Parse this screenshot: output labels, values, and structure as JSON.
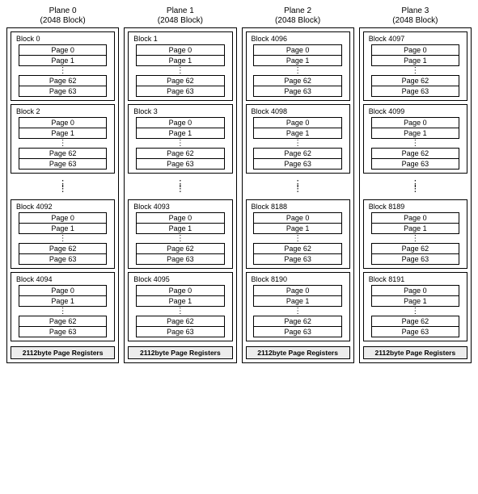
{
  "page_labels": [
    "Page 0",
    "Page 1",
    "Page 62",
    "Page 63"
  ],
  "register_label": "2112byte Page Registers",
  "plane_header": {
    "line1_prefix": "Plane ",
    "line2": "(2048 Block)"
  },
  "planes": [
    {
      "index": 0,
      "blocks_top": [
        "Block 0",
        "Block 2"
      ],
      "blocks_bottom": [
        "Block 4092",
        "Block 4094"
      ]
    },
    {
      "index": 1,
      "blocks_top": [
        "Block 1",
        "Block 3"
      ],
      "blocks_bottom": [
        "Block 4093",
        "Block 4095"
      ]
    },
    {
      "index": 2,
      "blocks_top": [
        "Block 4096",
        "Block 4098"
      ],
      "blocks_bottom": [
        "Block 8188",
        "Block 8190"
      ]
    },
    {
      "index": 3,
      "blocks_top": [
        "Block 4097",
        "Block 4099"
      ],
      "blocks_bottom": [
        "Block 8189",
        "Block 8191"
      ]
    }
  ],
  "colors": {
    "border": "#000000",
    "background": "#ffffff",
    "register_bg": "#ececec"
  }
}
